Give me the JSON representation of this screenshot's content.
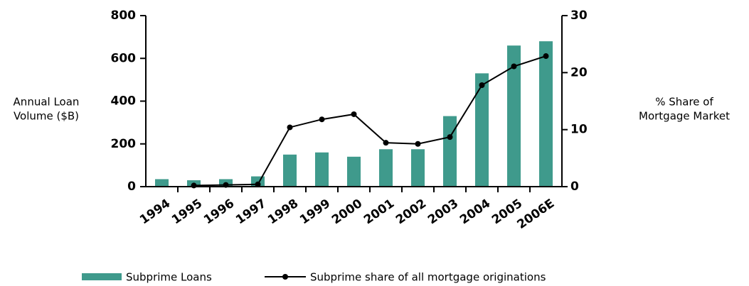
{
  "chart_data": {
    "type": "bar_line",
    "categories": [
      "1994",
      "1995",
      "1996",
      "1997",
      "1998",
      "1999",
      "2000",
      "2001",
      "2002",
      "2003",
      "2004",
      "2005",
      "2006E"
    ],
    "y_label": [
      "Annual Loan",
      "Volume ($B)"
    ],
    "y2_label": [
      "% Share of",
      "Mortgage Market"
    ],
    "ylim": [
      0,
      800
    ],
    "yticks": [
      0,
      200,
      400,
      600,
      800
    ],
    "y2lim": [
      0,
      30
    ],
    "y2ticks": [
      0,
      10,
      20,
      30
    ],
    "series": [
      {
        "name": "Subprime Loans",
        "color": "#3f9a8c",
        "values": [
          35,
          30,
          35,
          48,
          150,
          160,
          140,
          175,
          175,
          330,
          530,
          660,
          680
        ]
      },
      {
        "name": "Subprime share of all mortgage originations",
        "color": "#000000",
        "axis": "y2",
        "values": [
          null,
          0.2,
          0.3,
          0.4,
          10.4,
          11.8,
          12.7,
          7.7,
          7.5,
          8.7,
          17.8,
          21.1,
          22.9
        ]
      }
    ]
  }
}
